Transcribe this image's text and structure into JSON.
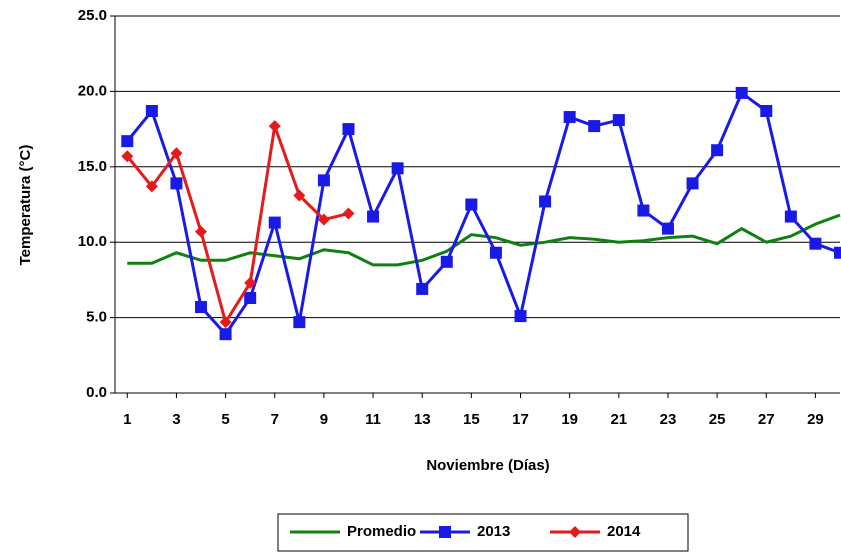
{
  "chart_data": {
    "type": "line",
    "x_label": "Noviembre (Días)",
    "y_label": "Temperatura (°C)",
    "x": [
      1,
      2,
      3,
      4,
      5,
      6,
      7,
      8,
      9,
      10,
      11,
      12,
      13,
      14,
      15,
      16,
      17,
      18,
      19,
      20,
      21,
      22,
      23,
      24,
      25,
      26,
      27,
      28,
      29,
      30
    ],
    "xlim": [
      0.5,
      30
    ],
    "xticks": [
      1,
      3,
      5,
      7,
      9,
      11,
      13,
      15,
      17,
      19,
      21,
      23,
      25,
      27,
      29
    ],
    "ylim": [
      0,
      25
    ],
    "yticks": [
      {
        "value": 0,
        "label": "0.0"
      },
      {
        "value": 5,
        "label": "5.0"
      },
      {
        "value": 10,
        "label": "10.0"
      },
      {
        "value": 15,
        "label": "15.0"
      },
      {
        "value": 20,
        "label": "20.0"
      },
      {
        "value": 25,
        "label": "25.0"
      }
    ],
    "grid": true,
    "legend": "bottom",
    "series": [
      {
        "name": "Promedio",
        "color": "#108010",
        "marker": "none",
        "values": [
          8.6,
          8.6,
          9.3,
          8.8,
          8.8,
          9.3,
          9.1,
          8.9,
          9.5,
          9.3,
          8.5,
          8.5,
          8.8,
          9.4,
          10.5,
          10.3,
          9.8,
          10.0,
          10.3,
          10.2,
          10.0,
          10.1,
          10.3,
          10.4,
          9.9,
          10.9,
          10.0,
          10.4,
          11.2,
          11.8
        ]
      },
      {
        "name": "2013",
        "color": "#1a1ae6",
        "marker": "square",
        "values": [
          16.7,
          18.7,
          13.9,
          5.7,
          3.9,
          6.3,
          11.3,
          4.7,
          14.1,
          17.5,
          11.7,
          14.9,
          6.9,
          8.7,
          12.5,
          9.3,
          5.1,
          12.7,
          18.3,
          17.7,
          18.1,
          12.1,
          10.9,
          13.9,
          16.1,
          19.9,
          18.7,
          11.7,
          9.9,
          9.3
        ]
      },
      {
        "name": "2014",
        "color": "#e61a1a",
        "marker": "diamond",
        "values": [
          15.7,
          13.7,
          15.9,
          10.7,
          4.7,
          7.3,
          17.7,
          13.1,
          11.5,
          11.9,
          null,
          null,
          null,
          null,
          null,
          null,
          null,
          null,
          null,
          null,
          null,
          null,
          null,
          null,
          null,
          null,
          null,
          null,
          null,
          null
        ]
      }
    ]
  }
}
